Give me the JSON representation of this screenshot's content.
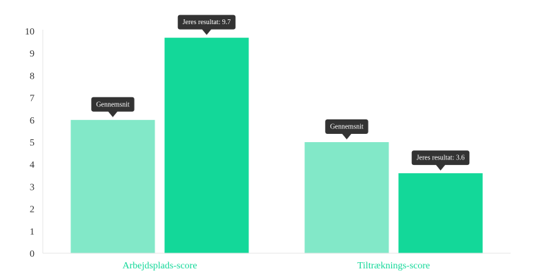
{
  "chart_data": {
    "type": "bar",
    "categories": [
      "Arbejdsplads-score",
      "Tiltræknings-score"
    ],
    "series": [
      {
        "values": [
          6,
          5
        ],
        "color": "#82e8c8"
      },
      {
        "values": [
          9.7,
          3.6
        ],
        "color": "#13d899"
      }
    ],
    "tooltips": [
      [
        "Gennemsnit",
        "Jeres resultat: 9.7"
      ],
      [
        "Gennemsnit",
        "Jeres resultat: 3.6"
      ]
    ],
    "ylim": [
      0,
      10
    ],
    "yticks": [
      "0",
      "1",
      "2",
      "3",
      "4",
      "5",
      "6",
      "7",
      "8",
      "9",
      "10"
    ],
    "category_label_color": "#13d899",
    "tooltip_color": "#333333",
    "axis_color": "#e6e6e6",
    "grid": false,
    "legend": false
  }
}
